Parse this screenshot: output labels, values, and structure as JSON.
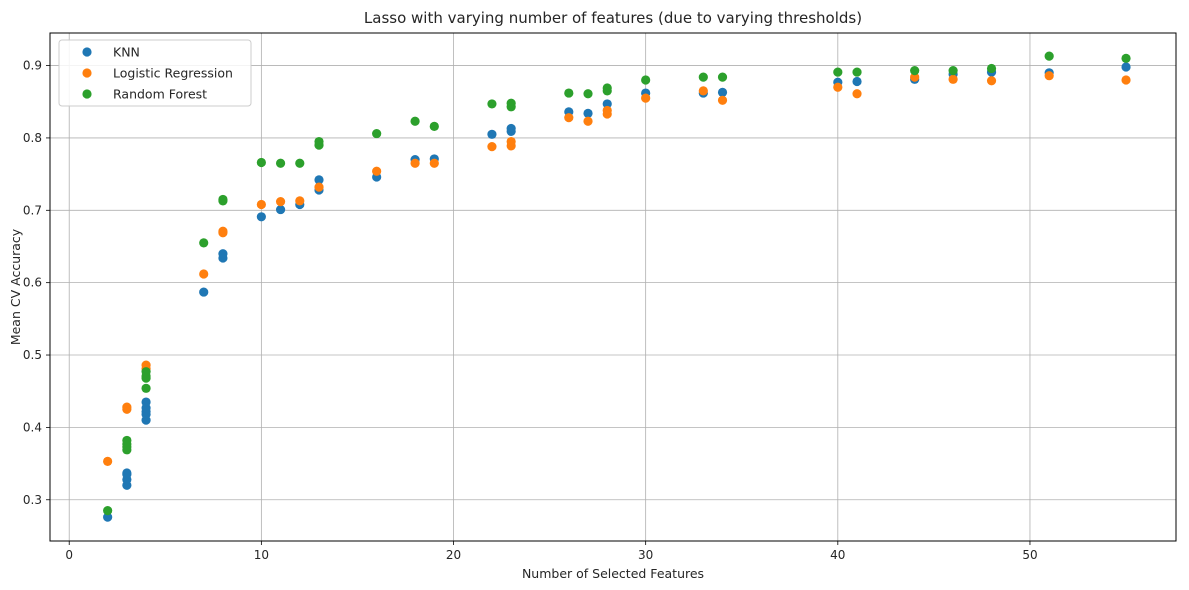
{
  "chart_data": {
    "type": "scatter",
    "title": "Lasso with varying number of features (due to varying thresholds)",
    "xlabel": "Number of Selected Features",
    "ylabel": "Mean CV Accuracy",
    "xlim": [
      -1,
      57.6
    ],
    "ylim": [
      0.243,
      0.945
    ],
    "xticks": [
      0,
      10,
      20,
      30,
      40,
      50
    ],
    "yticks": [
      0.3,
      0.4,
      0.5,
      0.6,
      0.7,
      0.8,
      0.9
    ],
    "grid": true,
    "legend_position": "top-left",
    "series": [
      {
        "name": "KNN",
        "color": "#1f77b4",
        "points": [
          [
            2,
            0.276
          ],
          [
            3,
            0.32
          ],
          [
            3,
            0.328
          ],
          [
            3,
            0.335
          ],
          [
            3,
            0.337
          ],
          [
            4,
            0.41
          ],
          [
            4,
            0.418
          ],
          [
            4,
            0.422
          ],
          [
            4,
            0.427
          ],
          [
            4,
            0.435
          ],
          [
            7,
            0.587
          ],
          [
            8,
            0.634
          ],
          [
            8,
            0.64
          ],
          [
            10,
            0.691
          ],
          [
            11,
            0.701
          ],
          [
            12,
            0.708
          ],
          [
            13,
            0.728
          ],
          [
            13,
            0.742
          ],
          [
            16,
            0.746
          ],
          [
            18,
            0.77
          ],
          [
            19,
            0.771
          ],
          [
            22,
            0.805
          ],
          [
            23,
            0.809
          ],
          [
            23,
            0.813
          ],
          [
            26,
            0.836
          ],
          [
            27,
            0.834
          ],
          [
            28,
            0.847
          ],
          [
            30,
            0.862
          ],
          [
            33,
            0.862
          ],
          [
            34,
            0.863
          ],
          [
            40,
            0.877
          ],
          [
            41,
            0.878
          ],
          [
            44,
            0.881
          ],
          [
            46,
            0.888
          ],
          [
            48,
            0.891
          ],
          [
            51,
            0.89
          ],
          [
            55,
            0.898
          ]
        ]
      },
      {
        "name": "Logistic Regression",
        "color": "#ff7f0e",
        "points": [
          [
            2,
            0.353
          ],
          [
            3,
            0.425
          ],
          [
            3,
            0.428
          ],
          [
            4,
            0.481
          ],
          [
            4,
            0.486
          ],
          [
            7,
            0.612
          ],
          [
            8,
            0.669
          ],
          [
            8,
            0.671
          ],
          [
            10,
            0.708
          ],
          [
            11,
            0.712
          ],
          [
            12,
            0.713
          ],
          [
            13,
            0.732
          ],
          [
            16,
            0.754
          ],
          [
            18,
            0.765
          ],
          [
            19,
            0.765
          ],
          [
            22,
            0.788
          ],
          [
            23,
            0.789
          ],
          [
            23,
            0.795
          ],
          [
            26,
            0.828
          ],
          [
            27,
            0.823
          ],
          [
            28,
            0.833
          ],
          [
            28,
            0.838
          ],
          [
            30,
            0.855
          ],
          [
            33,
            0.865
          ],
          [
            34,
            0.852
          ],
          [
            40,
            0.87
          ],
          [
            41,
            0.861
          ],
          [
            44,
            0.884
          ],
          [
            46,
            0.881
          ],
          [
            48,
            0.879
          ],
          [
            51,
            0.886
          ],
          [
            55,
            0.88
          ]
        ]
      },
      {
        "name": "Random Forest",
        "color": "#2ca02c",
        "points": [
          [
            2,
            0.285
          ],
          [
            3,
            0.369
          ],
          [
            3,
            0.373
          ],
          [
            3,
            0.377
          ],
          [
            3,
            0.382
          ],
          [
            4,
            0.454
          ],
          [
            4,
            0.468
          ],
          [
            4,
            0.471
          ],
          [
            4,
            0.477
          ],
          [
            7,
            0.655
          ],
          [
            8,
            0.713
          ],
          [
            8,
            0.715
          ],
          [
            10,
            0.766
          ],
          [
            11,
            0.765
          ],
          [
            12,
            0.765
          ],
          [
            13,
            0.79
          ],
          [
            13,
            0.795
          ],
          [
            16,
            0.806
          ],
          [
            18,
            0.823
          ],
          [
            19,
            0.816
          ],
          [
            22,
            0.847
          ],
          [
            23,
            0.843
          ],
          [
            23,
            0.848
          ],
          [
            26,
            0.862
          ],
          [
            27,
            0.861
          ],
          [
            28,
            0.865
          ],
          [
            28,
            0.869
          ],
          [
            30,
            0.88
          ],
          [
            33,
            0.884
          ],
          [
            34,
            0.884
          ],
          [
            40,
            0.891
          ],
          [
            41,
            0.891
          ],
          [
            44,
            0.893
          ],
          [
            46,
            0.893
          ],
          [
            48,
            0.896
          ],
          [
            51,
            0.913
          ],
          [
            55,
            0.91
          ]
        ]
      }
    ]
  }
}
